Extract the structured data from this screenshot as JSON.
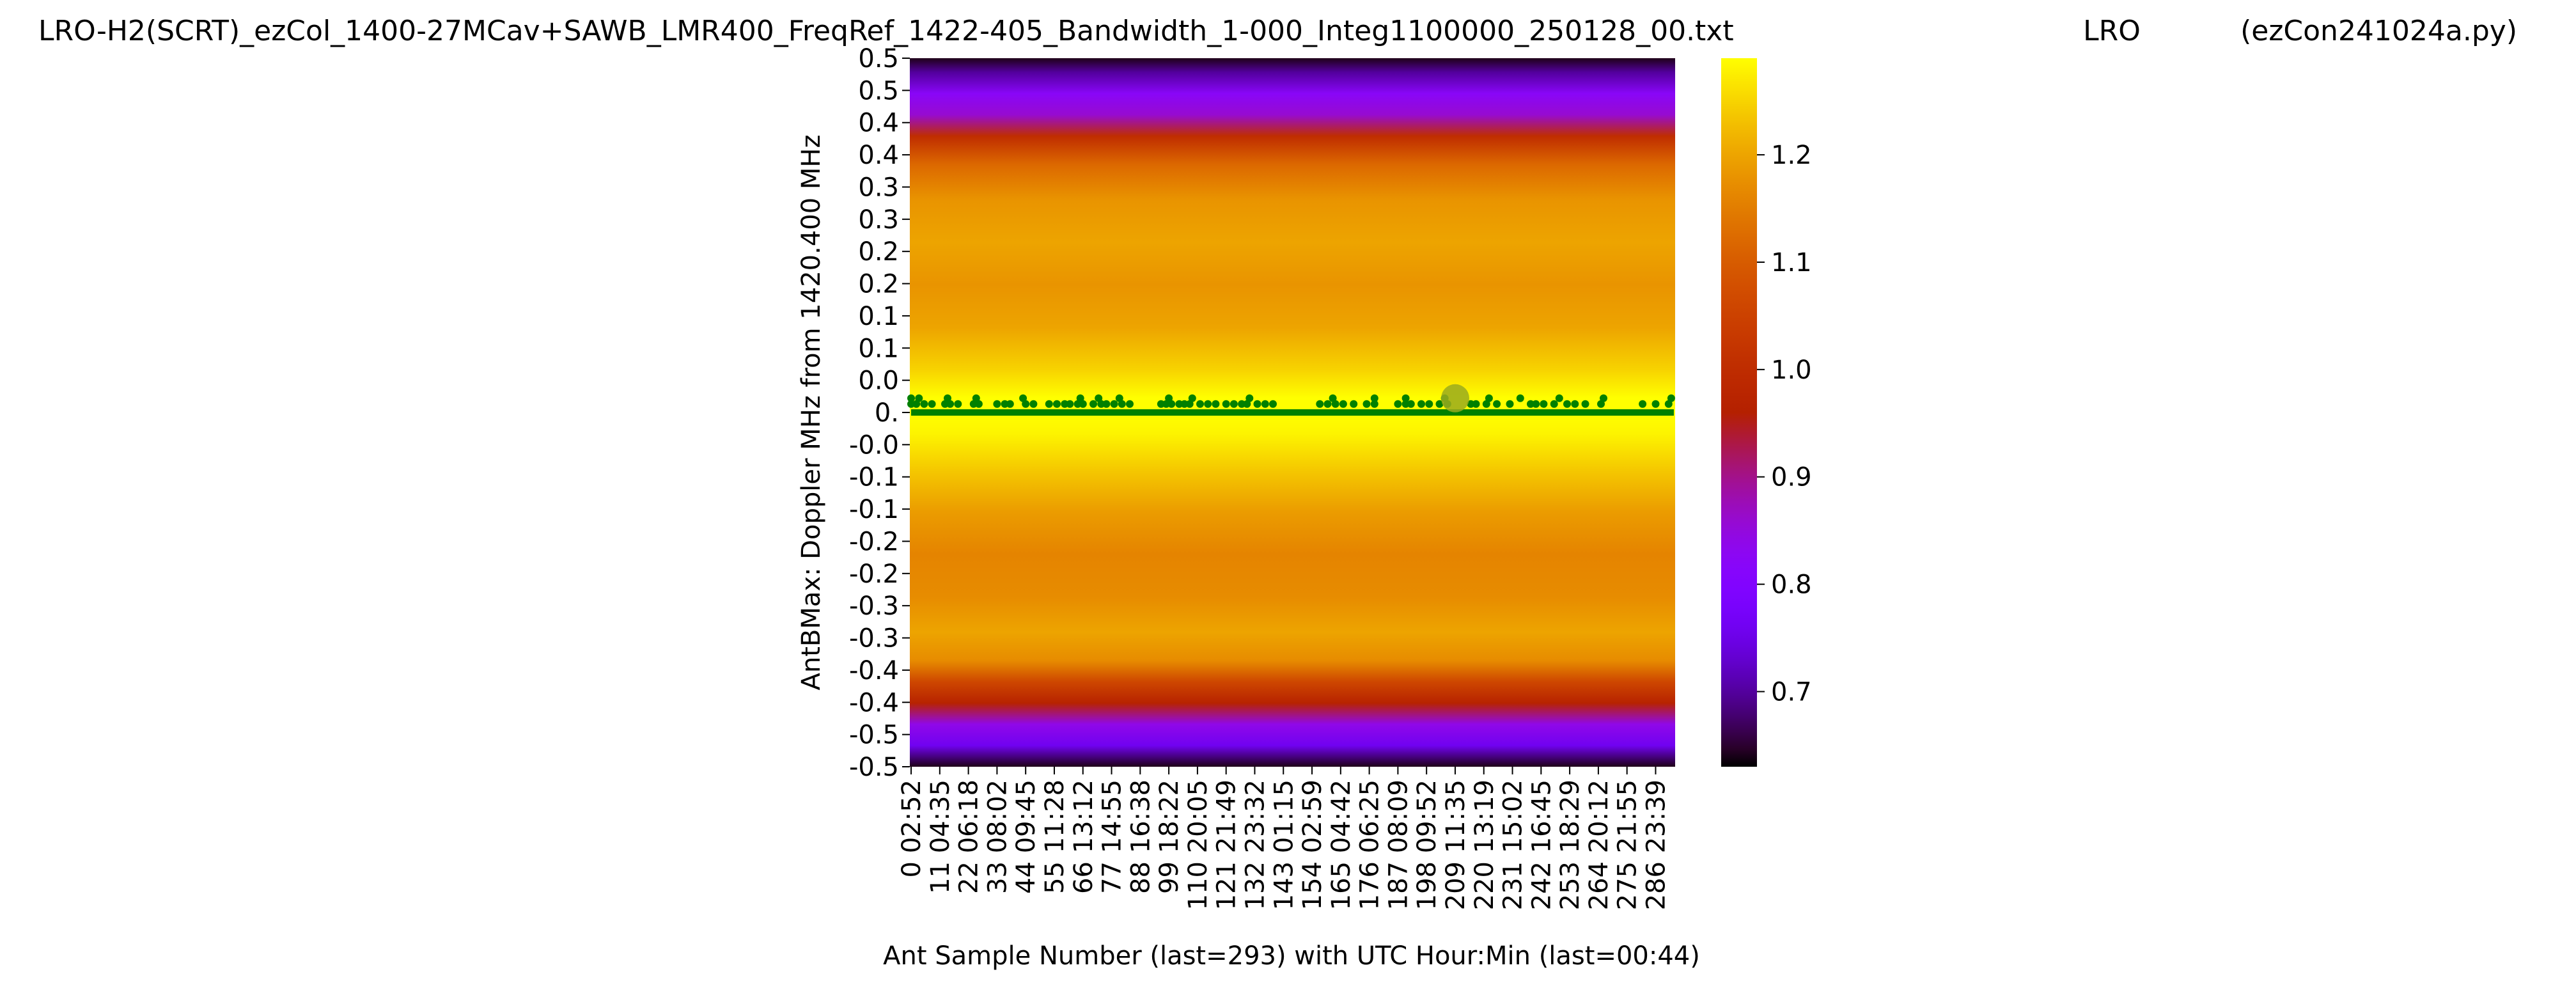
{
  "figure": {
    "title_left": "LRO-H2(SCRT)_ezCol_1400-27MCav+SAWB_LMR400_FreqRef_1422-405_Bandwidth_1-000_Integ1100000_250128_00.txt",
    "title_center": "LRO",
    "title_right": "(ezCon241024a.py)"
  },
  "chart_data": {
    "type": "heatmap",
    "colormap": "gnuplot",
    "xlabel": "Ant Sample Number (last=293) with UTC Hour:Min (last=00:44)",
    "ylabel": "AntBMax:  Doppler MHz from 1420.400 MHz",
    "x_samples": 294,
    "x_tick_labels": [
      "0  02:52",
      "11  04:35",
      "22  06:18",
      "33  08:02",
      "44  09:45",
      "55  11:28",
      "66  13:12",
      "77  14:55",
      "88  16:38",
      "99  18:22",
      "110  20:05",
      "121  21:49",
      "132  23:32",
      "143  01:15",
      "154  02:59",
      "165  04:42",
      "176  06:25",
      "187  08:09",
      "198  09:52",
      "209  11:35",
      "220  13:19",
      "231  15:02",
      "242  16:45",
      "253  18:29",
      "264  20:12",
      "275  21:55",
      "286  23:39"
    ],
    "x_tick_positions": [
      0,
      11,
      22,
      33,
      44,
      55,
      66,
      77,
      88,
      99,
      110,
      121,
      132,
      143,
      154,
      165,
      176,
      187,
      198,
      209,
      220,
      231,
      242,
      253,
      264,
      275,
      286
    ],
    "y_tick_labels": [
      "0.5",
      "0.5",
      "0.4",
      "0.4",
      "0.3",
      "0.3",
      "0.2",
      "0.2",
      "0.1",
      "0.1",
      "0.0",
      "0.",
      "-0.0",
      "-0.1",
      "-0.1",
      "-0.2",
      "-0.2",
      "-0.3",
      "-0.3",
      "-0.4",
      "-0.4",
      "-0.5",
      "-0.5"
    ],
    "ylim": [
      -0.5,
      0.5
    ],
    "colorbar": {
      "ticks": [
        0.7,
        0.8,
        0.9,
        1.0,
        1.1,
        1.2
      ],
      "tick_labels": [
        "0.7",
        "0.8",
        "0.9",
        "1.0",
        "1.1",
        "1.2"
      ],
      "range": [
        0.63,
        1.29
      ]
    },
    "intensity_profile": [
      {
        "doppler": 0.5,
        "value": 0.64
      },
      {
        "doppler": 0.48,
        "value": 0.7
      },
      {
        "doppler": 0.45,
        "value": 0.82
      },
      {
        "doppler": 0.42,
        "value": 0.86
      },
      {
        "doppler": 0.39,
        "value": 1.0
      },
      {
        "doppler": 0.35,
        "value": 1.12
      },
      {
        "doppler": 0.3,
        "value": 1.18
      },
      {
        "doppler": 0.24,
        "value": 1.2
      },
      {
        "doppler": 0.18,
        "value": 1.18
      },
      {
        "doppler": 0.12,
        "value": 1.2
      },
      {
        "doppler": 0.06,
        "value": 1.25
      },
      {
        "doppler": 0.02,
        "value": 1.29
      },
      {
        "doppler": 0.0,
        "value": 1.29
      },
      {
        "doppler": -0.03,
        "value": 1.28
      },
      {
        "doppler": -0.08,
        "value": 1.24
      },
      {
        "doppler": -0.14,
        "value": 1.19
      },
      {
        "doppler": -0.2,
        "value": 1.16
      },
      {
        "doppler": -0.26,
        "value": 1.17
      },
      {
        "doppler": -0.31,
        "value": 1.2
      },
      {
        "doppler": -0.35,
        "value": 1.17
      },
      {
        "doppler": -0.38,
        "value": 1.06
      },
      {
        "doppler": -0.41,
        "value": 0.97
      },
      {
        "doppler": -0.44,
        "value": 0.84
      },
      {
        "doppler": -0.47,
        "value": 0.76
      },
      {
        "doppler": -0.5,
        "value": 0.64
      }
    ],
    "peak_series": {
      "color": "#008000",
      "baseline_doppler": 0.0,
      "raised_doppler": 0.012,
      "high_doppler": 0.02,
      "raised_samples": [
        0,
        2,
        5,
        8,
        13,
        15,
        18,
        24,
        26,
        33,
        36,
        38,
        44,
        47,
        53,
        56,
        59,
        61,
        64,
        66,
        70,
        73,
        75,
        78,
        81,
        84,
        96,
        98,
        100,
        103,
        105,
        107,
        111,
        114,
        117,
        121,
        124,
        127,
        129,
        133,
        136,
        139,
        157,
        160,
        163,
        166,
        170,
        175,
        178,
        187,
        190,
        192,
        196,
        199,
        203,
        206,
        215,
        217,
        221,
        225,
        230,
        238,
        240,
        243,
        247,
        252,
        255,
        259,
        265,
        281,
        286,
        291
      ],
      "high_samples": [
        0,
        3,
        14,
        25,
        43,
        65,
        72,
        80,
        99,
        108,
        130,
        162,
        178,
        190,
        205,
        222,
        234,
        249,
        266,
        292
      ],
      "highlight": {
        "sample": 209,
        "doppler": 0.02
      }
    }
  }
}
